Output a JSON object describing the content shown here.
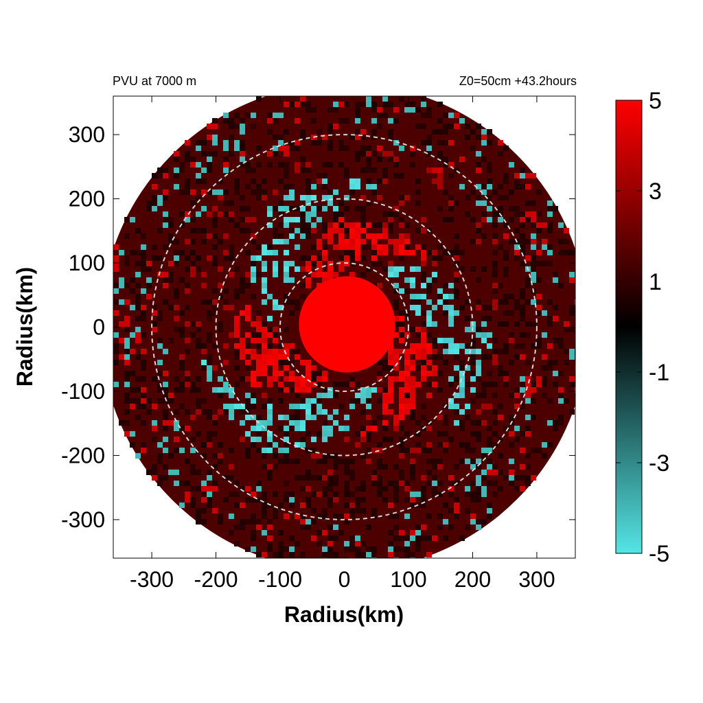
{
  "title_left": "PVU at  7000 m",
  "title_right": "Z0=50cm  +43.2hours",
  "chart_data": {
    "type": "heatmap",
    "title": "PVU at  7000 m",
    "subtitle": "Z0=50cm  +43.2hours",
    "xlabel": "Radius(km)",
    "ylabel": "Radius(km)",
    "xlim": [
      -360,
      360
    ],
    "ylim": [
      -360,
      360
    ],
    "xticks": [
      -300,
      -200,
      -100,
      0,
      100,
      200,
      300
    ],
    "yticks": [
      300,
      200,
      100,
      0,
      -100,
      -200,
      -300
    ],
    "domain_radius_km": 380,
    "reference_circles_km": [
      100,
      200,
      300
    ],
    "colorbar": {
      "min": -5,
      "max": 5,
      "ticks": [
        5,
        3,
        1,
        -1,
        -3,
        -5
      ],
      "colors": [
        "#55e5e5",
        "#000000",
        "#ff0000"
      ]
    },
    "core": {
      "value": 5,
      "radius_km": 75
    },
    "features": [
      {
        "kind": "positive-band",
        "from_km": 75,
        "to_km": 170,
        "value": 4
      },
      {
        "kind": "negative-band",
        "from_km": 100,
        "to_km": 230,
        "value": -4
      },
      {
        "kind": "background",
        "value": 1.5
      }
    ]
  }
}
